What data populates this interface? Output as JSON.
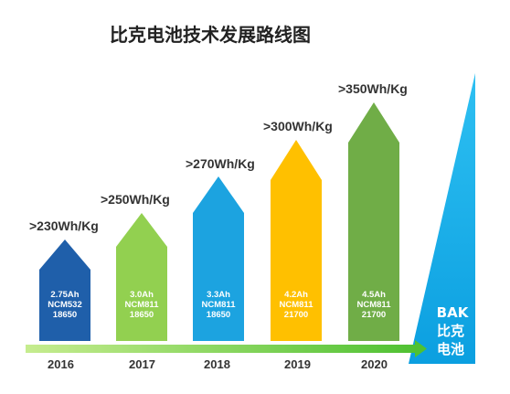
{
  "title": "比克电池技术发展路线图",
  "stages": [
    {
      "year": "2016",
      "energy": ">230Wh/Kg",
      "capacity": "2.75Ah",
      "chem": "NCM532",
      "cell": "18650",
      "color": "#1f5faa"
    },
    {
      "year": "2017",
      "energy": ">250Wh/Kg",
      "capacity": "3.0Ah",
      "chem": "NCM811",
      "cell": "18650",
      "color": "#92d050"
    },
    {
      "year": "2018",
      "energy": ">270Wh/Kg",
      "capacity": "3.3Ah",
      "chem": "NCM811",
      "cell": "18650",
      "color": "#1ca3e0"
    },
    {
      "year": "2019",
      "energy": ">300Wh/Kg",
      "capacity": "4.2Ah",
      "chem": "NCM811",
      "cell": "21700",
      "color": "#ffc000"
    },
    {
      "year": "2020",
      "energy": ">350Wh/Kg",
      "capacity": "4.5Ah",
      "chem": "NCM811",
      "cell": "21700",
      "color": "#70ad47"
    }
  ],
  "brand": {
    "line1": "BAK",
    "line2": "比克",
    "line3": "电池",
    "color": "#12a9e6"
  },
  "timeline_color": "#92d050"
}
